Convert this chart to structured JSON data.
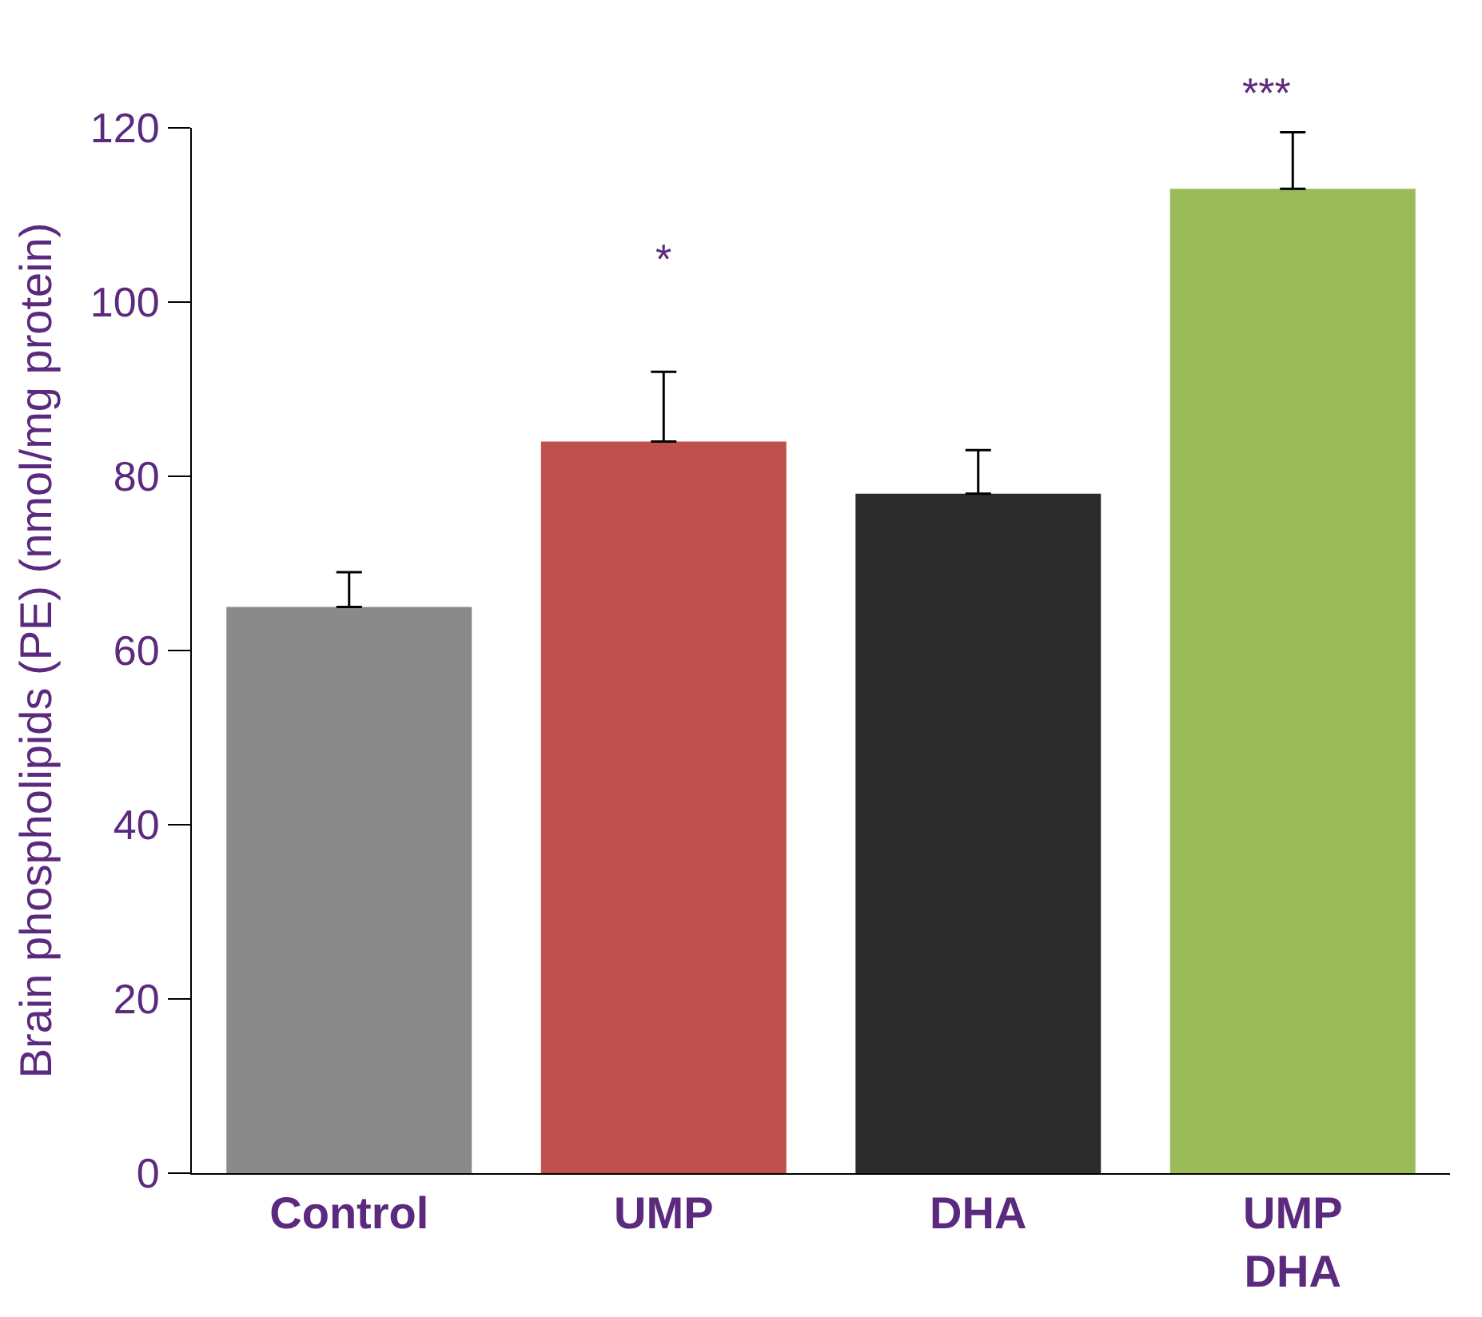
{
  "chart_data": {
    "type": "bar",
    "ylabel": "Brain phospholipids (PE) (nmol/mg protein)",
    "categories": [
      "Control",
      "UMP",
      "DHA",
      "UMP\nDHA"
    ],
    "values": [
      65,
      84,
      78,
      113
    ],
    "colors": [
      "#8a8a8a",
      "#c0504d",
      "#2b2b2b",
      "#9bbb59"
    ],
    "errors": [
      [
        65,
        69
      ],
      [
        84,
        92
      ],
      [
        78,
        83
      ],
      [
        113,
        119.5
      ]
    ],
    "ylim": [
      0,
      120
    ],
    "yticks": [
      0,
      20,
      40,
      60,
      80,
      100,
      120
    ],
    "legend": false,
    "annotations": [
      "*",
      "***"
    ]
  }
}
